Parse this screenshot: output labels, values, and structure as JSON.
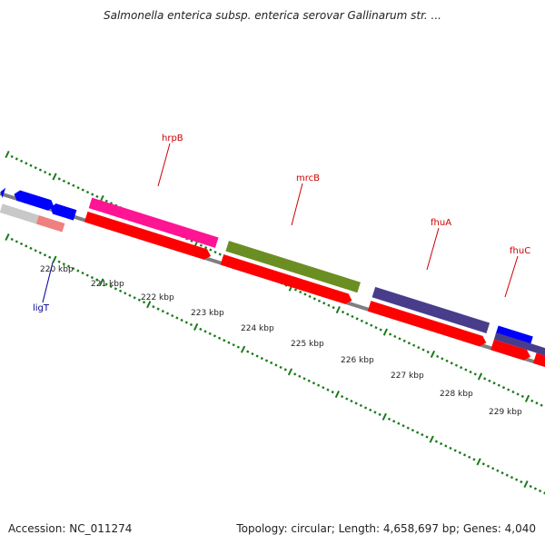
{
  "title": "Salmonella enterica subsp. enterica serovar Gallinarum str. ...",
  "footer": {
    "accession": "Accession: NC_011274",
    "info": "Topology: circular; Length: 4,658,697 bp; Genes: 4,040"
  },
  "ticks": [
    "220 kbp",
    "221 kbp",
    "222 kbp",
    "223 kbp",
    "224 kbp",
    "225 kbp",
    "226 kbp",
    "227 kbp",
    "228 kbp",
    "229 kbp"
  ],
  "genes": [
    {
      "name": "hrpB",
      "color": "#cc0000"
    },
    {
      "name": "mrcB",
      "color": "#cc0000"
    },
    {
      "name": "fhuA",
      "color": "#cc0000"
    },
    {
      "name": "fhuC",
      "color": "#cc0000"
    },
    {
      "name": "ligT",
      "color": "#000099"
    }
  ],
  "colors": {
    "backbone": "#808080",
    "tick": "#1a7a1a",
    "hrpB_feature": "#ff1493",
    "mrcB_feature": "#6b8e23",
    "fhu_feature": "#483d8b",
    "cds": "#ff0000",
    "blue_feature": "#0000ff",
    "grey_feature": "#c8c8c8",
    "pink_feature": "#f08080"
  }
}
